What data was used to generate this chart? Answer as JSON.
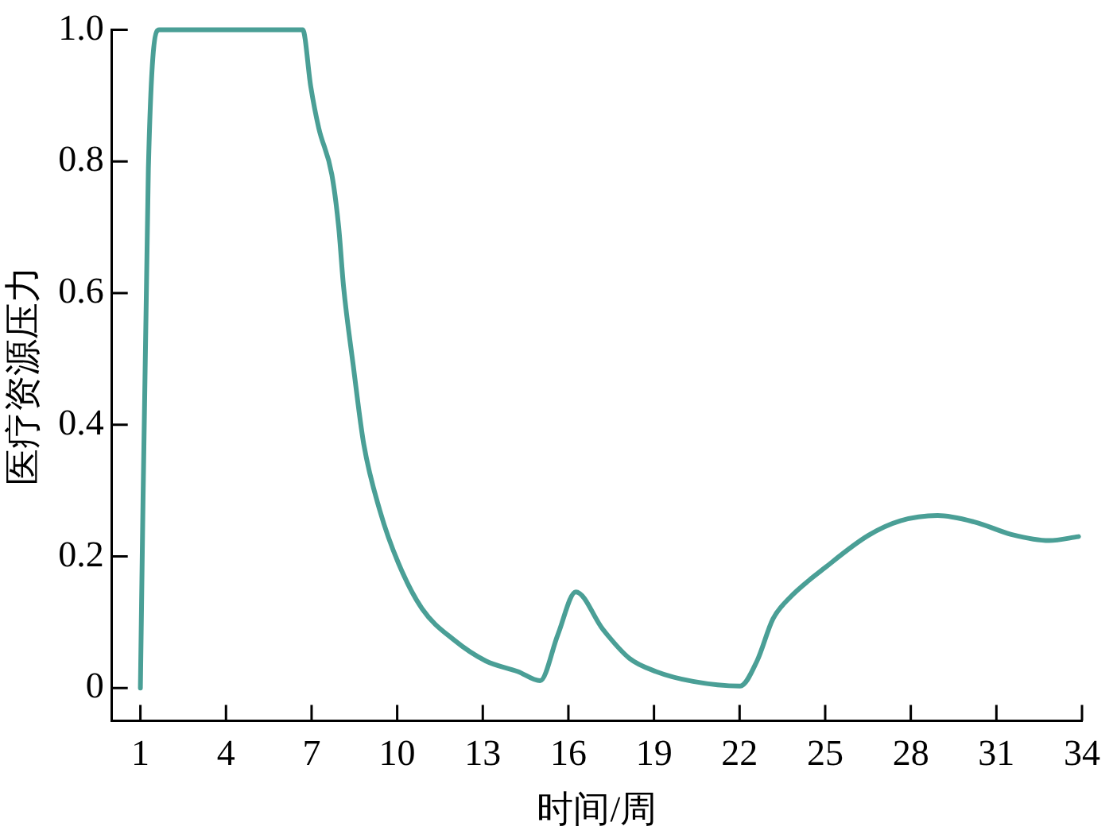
{
  "chart_data": {
    "type": "line",
    "xlabel": "时间/周",
    "ylabel": "医疗资源压力",
    "x": [
      1,
      1.28,
      1.66,
      6.69,
      6.97,
      7.25,
      7.71,
      7.95,
      8.12,
      8.46,
      8.83,
      9.39,
      10.04,
      10.88,
      11.99,
      13.11,
      14.23,
      15.01,
      15.63,
      16.26,
      17.21,
      18.14,
      19.07,
      20.37,
      22.02,
      22.61,
      23.17,
      23.73,
      25.03,
      26.52,
      27.64,
      28.94,
      30.25,
      31.55,
      32.85,
      33.88
    ],
    "series": [
      {
        "color": "#4a9f96",
        "values": [
          0,
          0.79,
          1,
          1,
          0.914,
          0.851,
          0.78,
          0.7,
          0.61,
          0.49,
          0.37,
          0.27,
          0.19,
          0.12,
          0.073,
          0.041,
          0.025,
          0.011,
          0.081,
          0.146,
          0.089,
          0.045,
          0.025,
          0.01,
          0.003,
          0.041,
          0.105,
          0.136,
          0.184,
          0.232,
          0.254,
          0.262,
          0.252,
          0.233,
          0.224,
          0.23
        ]
      }
    ],
    "xlim": [
      0,
      34
    ],
    "ylim": [
      -0.05,
      1
    ],
    "xticks": [
      1,
      4,
      7,
      10,
      13,
      16,
      19,
      22,
      25,
      28,
      31,
      34
    ],
    "yticks": [
      0,
      0.2,
      0.4,
      0.6,
      0.8,
      {
        "value": 1,
        "label": "1.0"
      }
    ],
    "grid": false,
    "legend": false,
    "marker": "none",
    "line_style": "solid"
  }
}
